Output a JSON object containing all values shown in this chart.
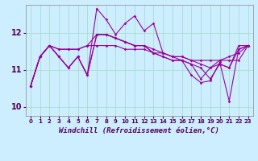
{
  "xlabel": "Windchill (Refroidissement éolien,°C)",
  "background_color": "#cceeff",
  "grid_color": "#aaddcc",
  "line_color": "#990099",
  "xlim": [
    -0.5,
    23.5
  ],
  "ylim": [
    9.75,
    12.75
  ],
  "yticks": [
    10,
    11,
    12
  ],
  "xticks": [
    0,
    1,
    2,
    3,
    4,
    5,
    6,
    7,
    8,
    9,
    10,
    11,
    12,
    13,
    14,
    15,
    16,
    17,
    18,
    19,
    20,
    21,
    22,
    23
  ],
  "series": [
    [
      10.55,
      11.35,
      11.65,
      11.35,
      11.05,
      11.35,
      10.85,
      12.65,
      12.35,
      11.95,
      12.25,
      12.45,
      12.05,
      12.25,
      11.45,
      11.35,
      11.25,
      11.15,
      10.75,
      11.05,
      11.15,
      11.05,
      11.65,
      11.65
    ],
    [
      10.55,
      11.35,
      11.65,
      11.55,
      11.55,
      11.55,
      11.65,
      11.65,
      11.65,
      11.65,
      11.55,
      11.55,
      11.55,
      11.45,
      11.45,
      11.35,
      11.35,
      11.25,
      11.25,
      11.25,
      11.25,
      11.25,
      11.25,
      11.65
    ],
    [
      10.55,
      11.35,
      11.65,
      11.55,
      11.55,
      11.55,
      11.65,
      11.95,
      11.95,
      11.85,
      11.75,
      11.65,
      11.65,
      11.55,
      11.45,
      11.35,
      11.35,
      11.25,
      11.15,
      11.05,
      11.25,
      11.35,
      11.45,
      11.65
    ],
    [
      10.55,
      11.35,
      11.65,
      11.35,
      11.05,
      11.35,
      10.85,
      11.95,
      11.95,
      11.85,
      11.75,
      11.65,
      11.65,
      11.45,
      11.35,
      11.25,
      11.25,
      10.85,
      10.65,
      10.7,
      11.2,
      10.15,
      11.55,
      11.65
    ],
    [
      10.55,
      11.35,
      11.65,
      11.35,
      11.05,
      11.35,
      10.85,
      11.95,
      11.95,
      11.85,
      11.75,
      11.65,
      11.65,
      11.45,
      11.35,
      11.25,
      11.25,
      11.15,
      11.05,
      10.75,
      11.15,
      11.05,
      11.55,
      11.65
    ]
  ]
}
